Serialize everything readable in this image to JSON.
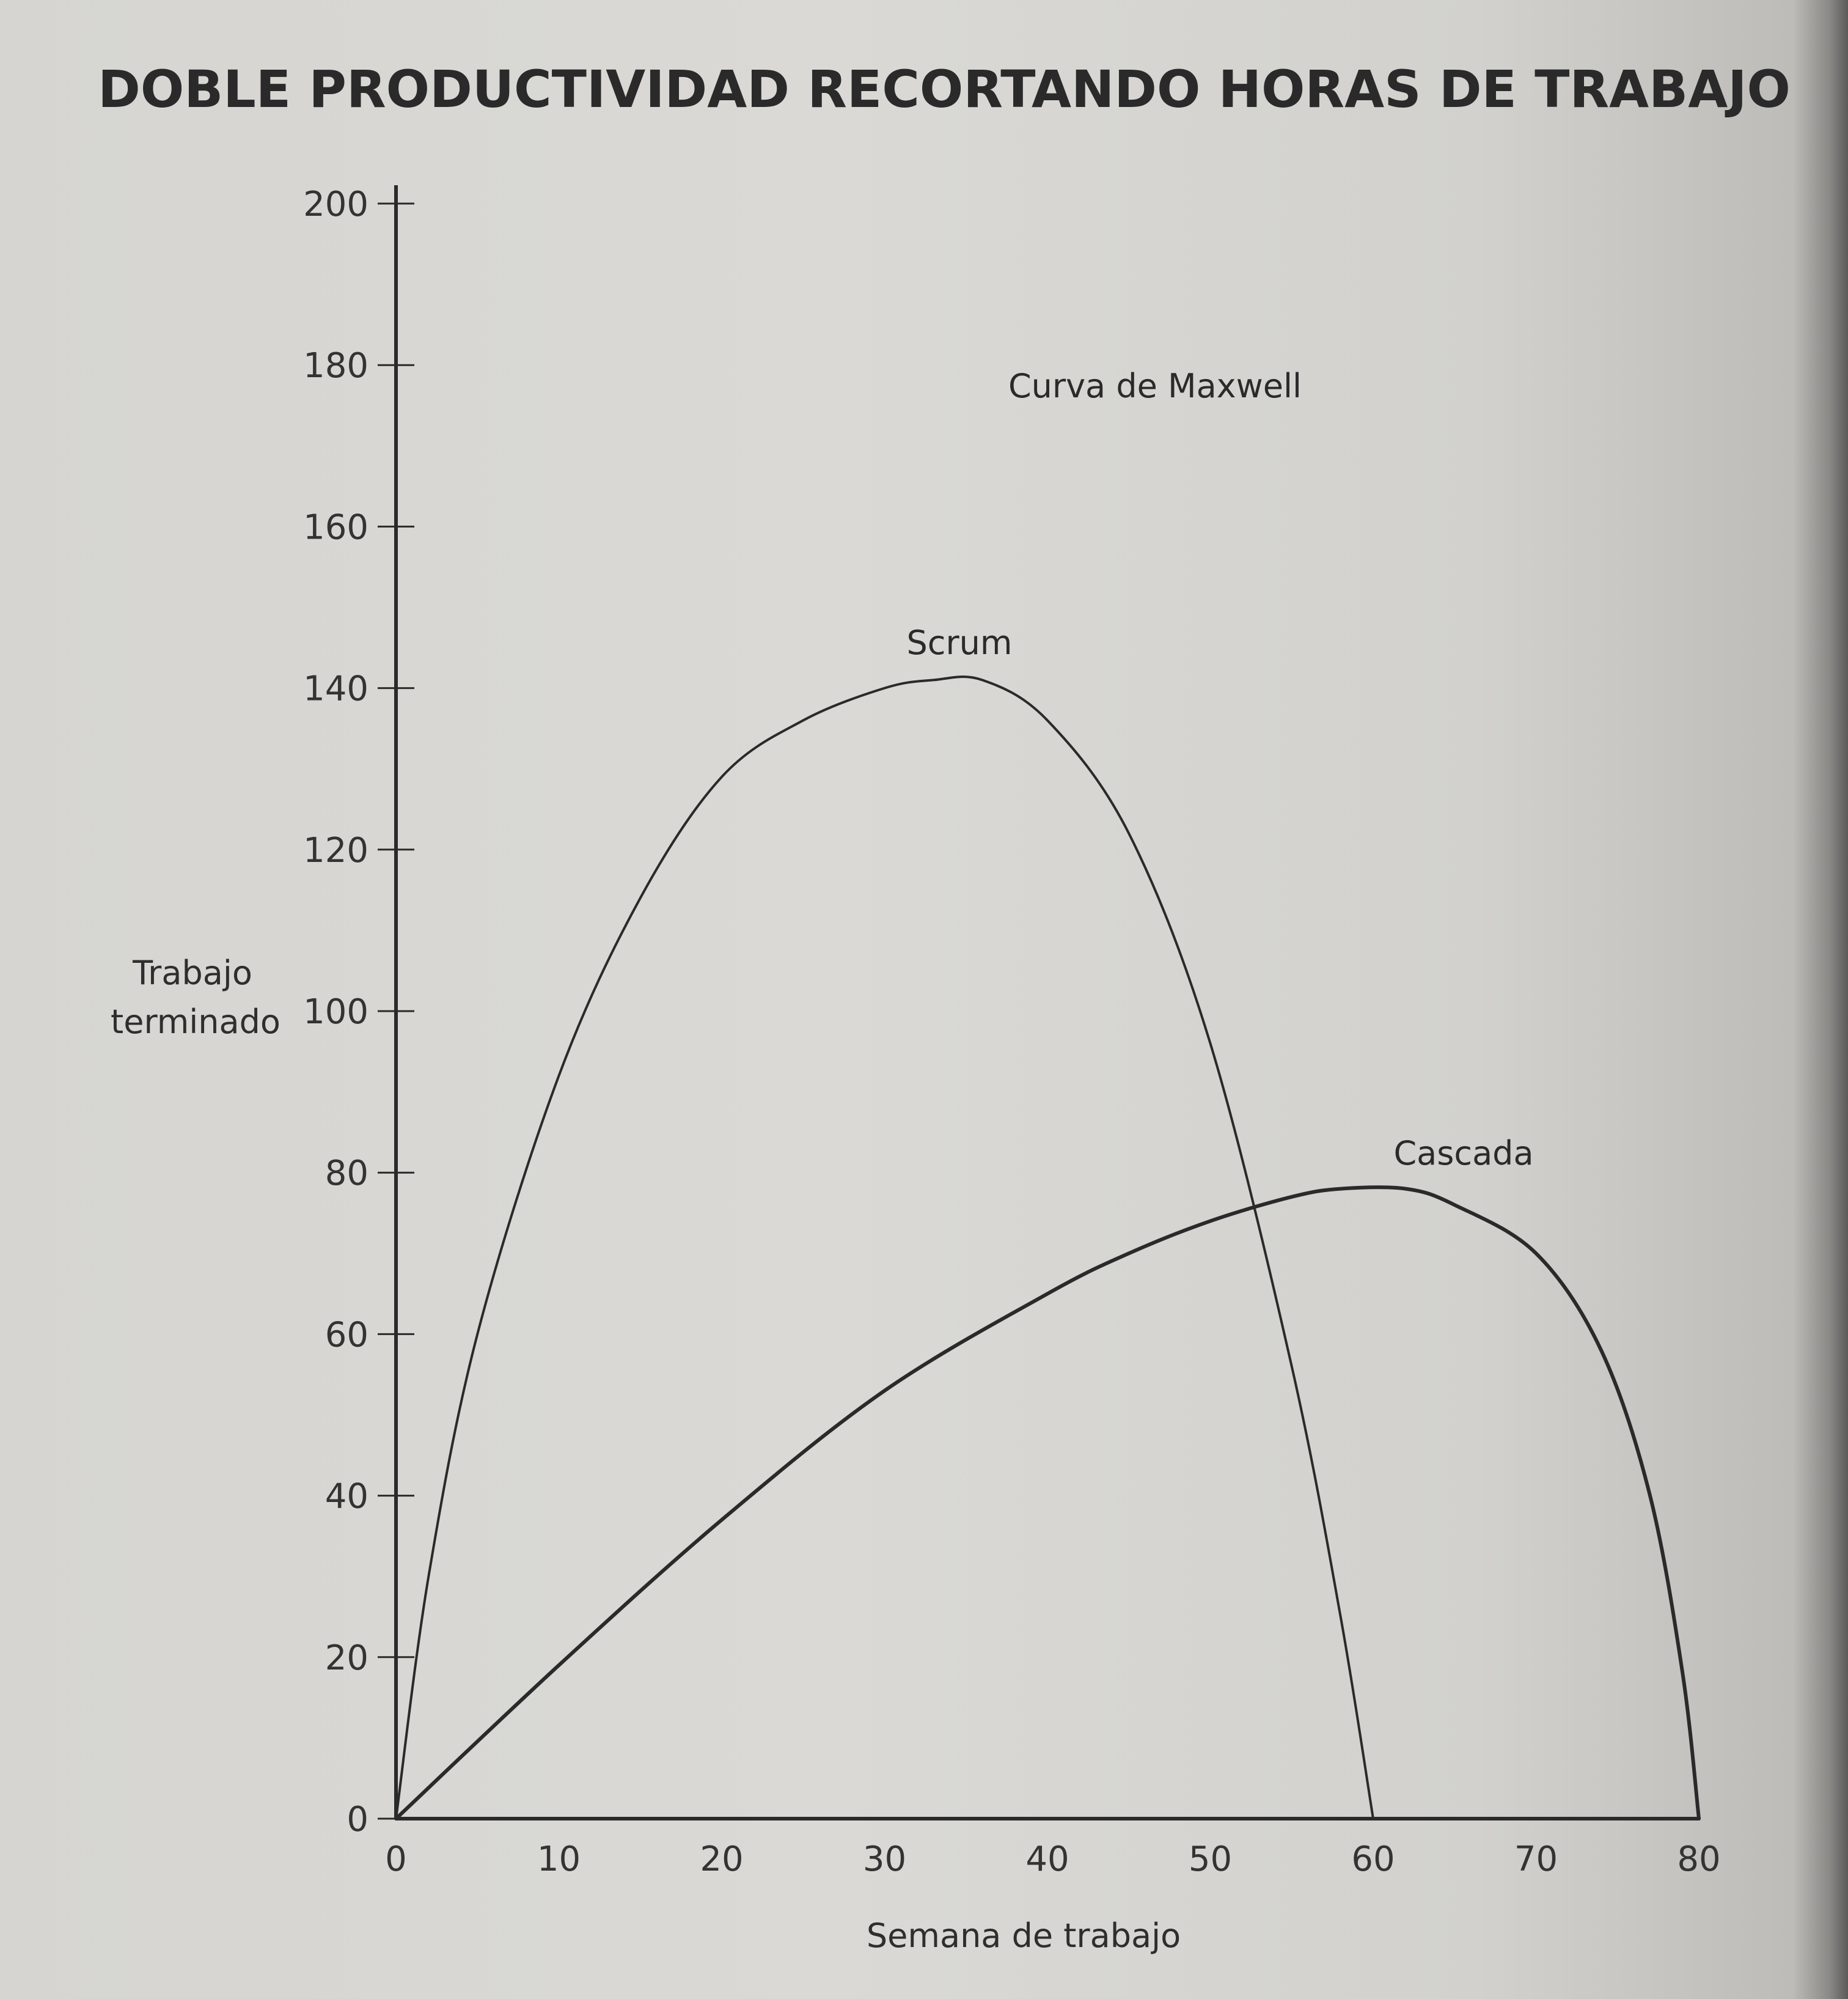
{
  "chart_data": {
    "type": "line",
    "title": "DOBLE PRODUCTIVIDAD RECORTANDO HORAS DE TRABAJO",
    "subtitle_annotation": "Curva de Maxwell",
    "xlabel": "Semana de trabajo",
    "ylabel": [
      "Trabajo",
      "terminado"
    ],
    "xlim": [
      0,
      80
    ],
    "ylim": [
      0,
      200
    ],
    "x_ticks": [
      0,
      10,
      20,
      30,
      40,
      50,
      60,
      70,
      80
    ],
    "y_ticks": [
      0,
      20,
      40,
      60,
      80,
      100,
      120,
      140,
      160,
      180,
      200
    ],
    "grid": false,
    "series": [
      {
        "name": "Scrum",
        "x": [
          0,
          2,
          5,
          10,
          15,
          20,
          25,
          30,
          33,
          36,
          40,
          45,
          50,
          55,
          58,
          60
        ],
        "y": [
          0,
          30,
          60,
          92,
          114,
          129,
          136,
          140,
          141,
          141,
          136,
          122,
          96,
          56,
          25,
          0
        ]
      },
      {
        "name": "Cascada",
        "x": [
          0,
          10,
          20,
          30,
          40,
          45,
          50,
          55,
          58,
          62,
          65,
          70,
          74,
          77,
          79,
          80
        ],
        "y": [
          0,
          19,
          37,
          53,
          65,
          70,
          74,
          77,
          78,
          78,
          76,
          70,
          58,
          40,
          18,
          0
        ]
      }
    ]
  },
  "colors": {
    "paper": "#d6d5d1",
    "ink": "#2a2a2a"
  }
}
